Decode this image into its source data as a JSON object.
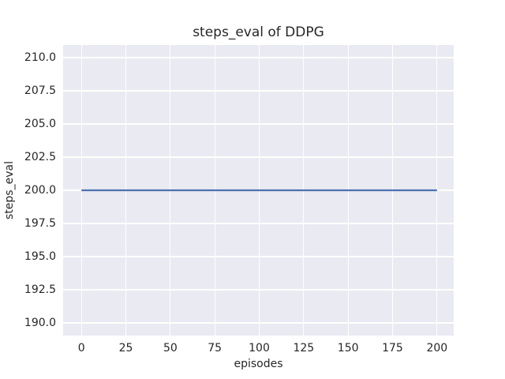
{
  "chart_data": {
    "type": "line",
    "title": "steps_eval of DDPG",
    "xlabel": "episodes",
    "ylabel": "steps_eval",
    "x_ticks": [
      0,
      25,
      50,
      75,
      100,
      125,
      150,
      175,
      200
    ],
    "y_ticks": [
      190.0,
      192.5,
      195.0,
      197.5,
      200.0,
      202.5,
      205.0,
      207.5,
      210.0
    ],
    "y_tick_labels": [
      "190.0",
      "192.5",
      "195.0",
      "197.5",
      "200.0",
      "202.5",
      "205.0",
      "207.5",
      "210.0"
    ],
    "x_tick_labels": [
      "0",
      "25",
      "50",
      "75",
      "100",
      "125",
      "150",
      "175",
      "200"
    ],
    "xlim": [
      -10.3,
      209.4
    ],
    "ylim": [
      189.05,
      210.95
    ],
    "grid": true,
    "legend": false,
    "series": [
      {
        "name": "DDPG",
        "color": "#4C72B0",
        "x": [
          0,
          200
        ],
        "y": [
          200,
          200
        ]
      }
    ],
    "colors": {
      "plot_background": "#EAEAF2",
      "gridline": "#FFFFFF",
      "text": "#262626",
      "figure_background": "#FFFFFF"
    }
  }
}
